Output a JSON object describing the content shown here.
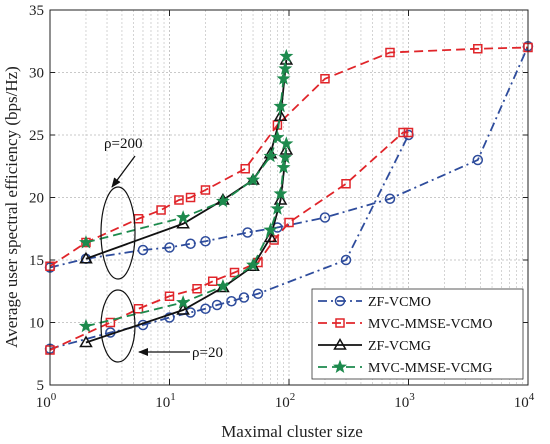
{
  "chart_data": {
    "type": "line",
    "xscale": "log",
    "xlim": [
      1,
      10000
    ],
    "ylim": [
      5,
      35
    ],
    "xticks": [
      {
        "value": 1,
        "base": "10",
        "exp": "0"
      },
      {
        "value": 10,
        "base": "10",
        "exp": "1"
      },
      {
        "value": 100,
        "base": "10",
        "exp": "2"
      },
      {
        "value": 1000,
        "base": "10",
        "exp": "3"
      },
      {
        "value": 10000,
        "base": "10",
        "exp": "4"
      }
    ],
    "yticks": [
      "5",
      "10",
      "15",
      "20",
      "25",
      "30",
      "35"
    ],
    "xlabel": "Maximal cluster size",
    "ylabel": "Average user  spectral efficiency (bps/Hz)",
    "grid": true,
    "legend_position": "bottom-right",
    "annotations": [
      "ρ=200",
      "ρ=20"
    ],
    "series": [
      {
        "name": "ZF-VCMO",
        "color": "#2e4c9c",
        "dash": "dashdot",
        "marker": "circle",
        "points": [
          [
            1,
            14.4
          ],
          [
            2,
            15.1
          ],
          [
            6,
            15.8
          ],
          [
            10,
            16
          ],
          [
            15,
            16.3
          ],
          [
            20,
            16.5
          ],
          [
            45,
            17.2
          ],
          [
            80,
            17.6
          ],
          [
            200,
            18.4
          ],
          [
            700,
            19.9
          ],
          [
            3800,
            23
          ],
          [
            10000,
            32.1
          ]
        ]
      },
      {
        "name": "MVC-MMSE-VCMO",
        "color": "#e0252a",
        "dash": "dash",
        "marker": "square",
        "points": [
          [
            1,
            14.5
          ],
          [
            2,
            16.4
          ],
          [
            5.5,
            18.3
          ],
          [
            8.5,
            19
          ],
          [
            12,
            19.8
          ],
          [
            15,
            20
          ],
          [
            20,
            20.6
          ],
          [
            43,
            22.3
          ],
          [
            80,
            25.8
          ],
          [
            200,
            29.5
          ],
          [
            700,
            31.6
          ],
          [
            3800,
            31.9
          ],
          [
            10000,
            32
          ]
        ]
      },
      {
        "name": "ZF-VCMG",
        "color": "#111111",
        "dash": "solid",
        "marker": "triangle",
        "points": [
          [
            2,
            15.1
          ],
          [
            13,
            17.9
          ],
          [
            28,
            19.8
          ],
          [
            50,
            21.4
          ],
          [
            70,
            23.5
          ],
          [
            85,
            26.5
          ],
          [
            95,
            31
          ]
        ]
      },
      {
        "name": "MVC-MMSE-VCMG",
        "color": "#1d8a4d",
        "dash": "dash",
        "marker": "star",
        "points": [
          [
            2,
            16.4
          ],
          [
            13,
            18.4
          ],
          [
            28,
            19.7
          ],
          [
            50,
            21.4
          ],
          [
            70,
            23.3
          ],
          [
            80,
            24.8
          ],
          [
            85,
            27.3
          ],
          [
            90,
            29.5
          ],
          [
            93,
            30.3
          ],
          [
            95,
            31.3
          ]
        ]
      },
      {
        "name": "",
        "color": "#2e4c9c",
        "dash": "dashdot",
        "marker": "circle",
        "points": [
          [
            1,
            7.9
          ],
          [
            3.2,
            9.2
          ],
          [
            6,
            9.8
          ],
          [
            10,
            10.4
          ],
          [
            15,
            10.8
          ],
          [
            20,
            11.1
          ],
          [
            25,
            11.4
          ],
          [
            33,
            11.7
          ],
          [
            42,
            12
          ],
          [
            55,
            12.3
          ],
          [
            300,
            15
          ],
          [
            1000,
            25
          ]
        ]
      },
      {
        "name": "",
        "color": "#e0252a",
        "dash": "dash",
        "marker": "square",
        "points": [
          [
            1,
            7.8
          ],
          [
            3.2,
            10
          ],
          [
            5.5,
            11.1
          ],
          [
            10,
            12.1
          ],
          [
            17,
            12.7
          ],
          [
            23,
            13.3
          ],
          [
            35,
            14
          ],
          [
            55,
            14.8
          ],
          [
            75,
            16.6
          ],
          [
            100,
            18
          ],
          [
            300,
            21.1
          ],
          [
            900,
            25.2
          ],
          [
            1000,
            25.2
          ]
        ]
      },
      {
        "name": "",
        "color": "#111111",
        "dash": "solid",
        "marker": "triangle",
        "points": [
          [
            2,
            8.4
          ],
          [
            13,
            11
          ],
          [
            28,
            12.8
          ],
          [
            50,
            14.5
          ],
          [
            70,
            16.8
          ],
          [
            85,
            19.8
          ],
          [
            95,
            23.8
          ]
        ]
      },
      {
        "name": "",
        "color": "#1d8a4d",
        "dash": "dash",
        "marker": "star",
        "points": [
          [
            2,
            9.7
          ],
          [
            13,
            11.6
          ],
          [
            28,
            12.9
          ],
          [
            50,
            14.6
          ],
          [
            70,
            17.4
          ],
          [
            80,
            19.1
          ],
          [
            85,
            20.3
          ],
          [
            90,
            22.4
          ],
          [
            93,
            23.2
          ],
          [
            95,
            24.3
          ]
        ]
      }
    ]
  }
}
